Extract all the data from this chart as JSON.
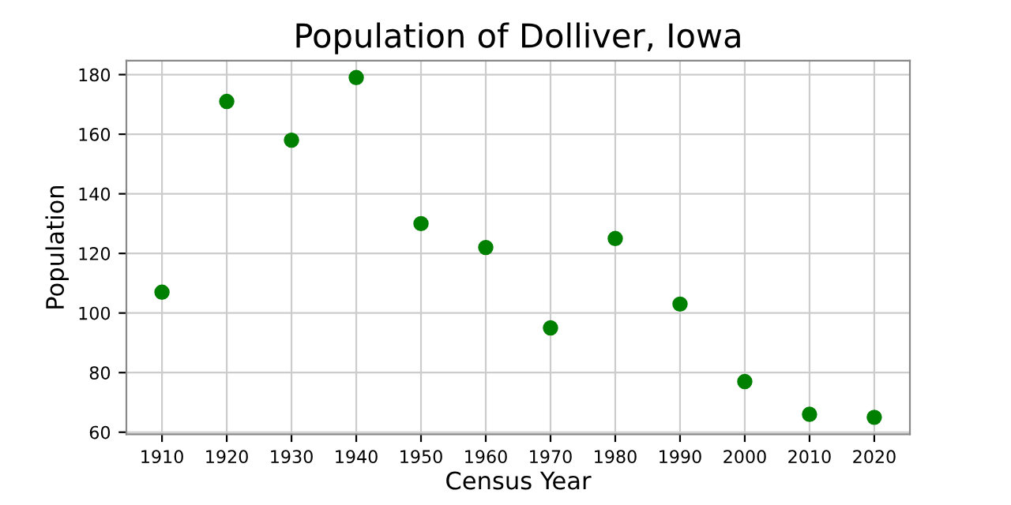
{
  "chart_data": {
    "type": "scatter",
    "title": "Population of Dolliver, Iowa",
    "xlabel": "Census Year",
    "ylabel": "Population",
    "x": [
      1910,
      1920,
      1930,
      1940,
      1950,
      1960,
      1970,
      1980,
      1990,
      2000,
      2010,
      2020
    ],
    "series": [
      {
        "color": "#008000",
        "values": [
          107,
          171,
          158,
          179,
          130,
          122,
          95,
          125,
          103,
          77,
          66,
          65
        ]
      }
    ],
    "xlim": [
      1904.5,
      2025.5
    ],
    "xticks": [
      1910,
      1920,
      1930,
      1940,
      1950,
      1960,
      1970,
      1980,
      1990,
      2000,
      2010,
      2020
    ],
    "ylim": [
      59.3,
      184.7
    ],
    "yticks": [
      60,
      80,
      100,
      120,
      140,
      160,
      180
    ],
    "grid": true,
    "marker": "circle"
  }
}
